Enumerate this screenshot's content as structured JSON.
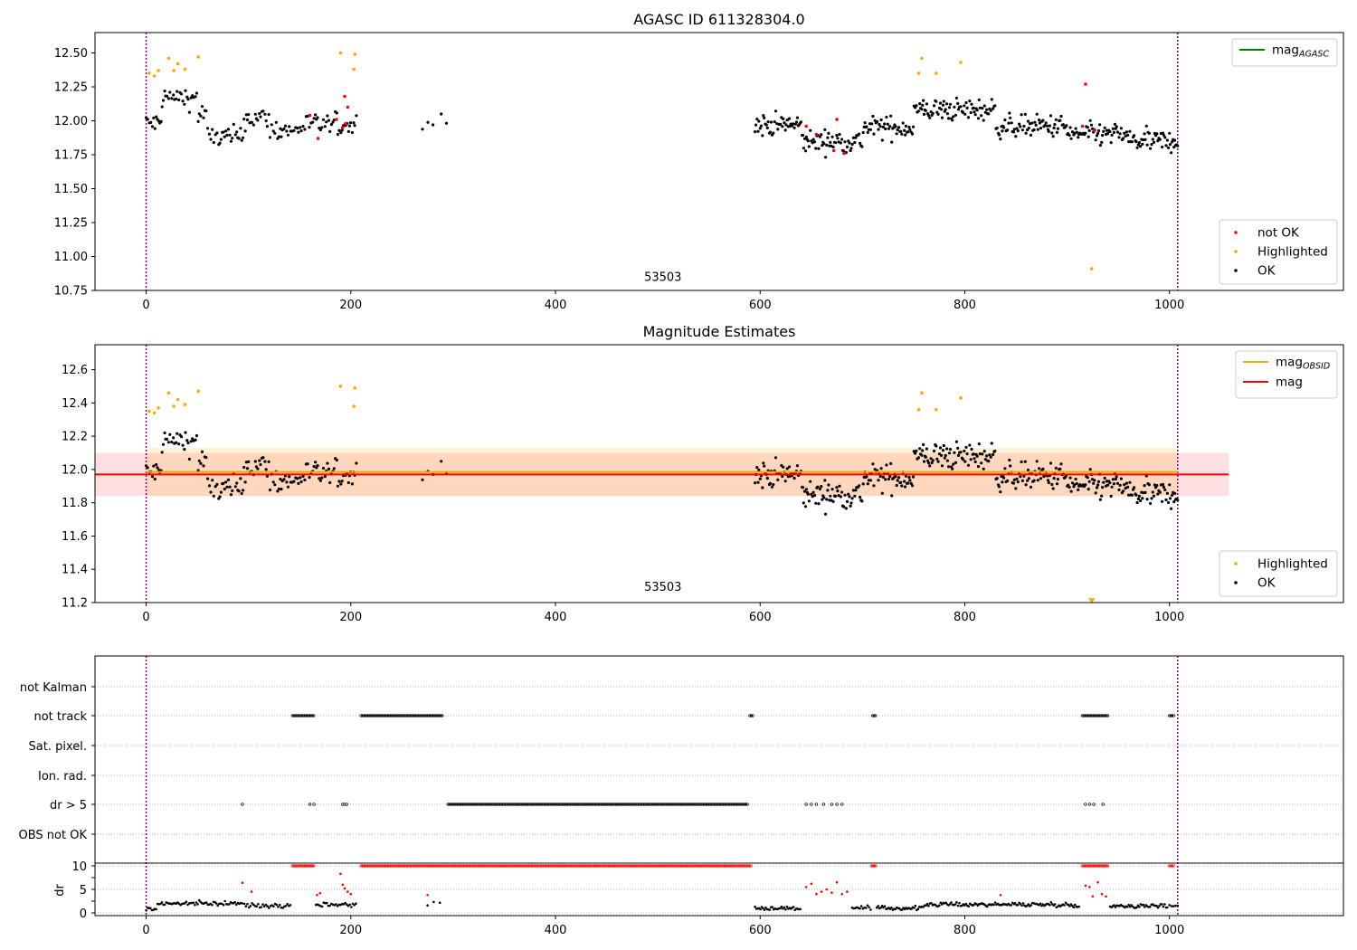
{
  "panel1": {
    "title": "AGASC ID 611328304.0",
    "type": "scatter",
    "xlim": [
      -50,
      1170
    ],
    "ylim": [
      10.75,
      12.65
    ],
    "xticks": [
      "0",
      "200",
      "400",
      "600",
      "800",
      "1000"
    ],
    "yticks": [
      "10.75",
      "11.00",
      "11.25",
      "11.50",
      "11.75",
      "12.00",
      "12.25",
      "12.50"
    ],
    "annotation": {
      "text": "53503",
      "x": 505,
      "y": 10.82
    },
    "vlines": [
      0,
      1008
    ],
    "legend_lines": [
      {
        "label_main": "mag",
        "label_sub": "AGASC",
        "color": "#008000"
      }
    ],
    "legend_points": [
      {
        "label": "not OK",
        "color": "#ff0000"
      },
      {
        "label": "Highlighted",
        "color": "#ffa500"
      },
      {
        "label": "OK",
        "color": "#000000"
      }
    ],
    "highlighted_points": [
      [
        3,
        12.35
      ],
      [
        8,
        12.33
      ],
      [
        12,
        12.37
      ],
      [
        22,
        12.46
      ],
      [
        27,
        12.37
      ],
      [
        31,
        12.42
      ],
      [
        38,
        12.38
      ],
      [
        51,
        12.47
      ],
      [
        190,
        12.5
      ],
      [
        204,
        12.49
      ],
      [
        203,
        12.38
      ],
      [
        755,
        12.35
      ],
      [
        758,
        12.46
      ],
      [
        772,
        12.35
      ],
      [
        796,
        12.43
      ],
      [
        924,
        10.91
      ]
    ],
    "notok_points": [
      [
        160,
        12.04
      ],
      [
        168,
        11.87
      ],
      [
        186,
        12.01
      ],
      [
        192,
        11.95
      ],
      [
        194,
        12.18
      ],
      [
        195,
        11.98
      ],
      [
        197,
        12.1
      ],
      [
        645,
        11.96
      ],
      [
        655,
        11.9
      ],
      [
        672,
        11.78
      ],
      [
        675,
        12.01
      ],
      [
        682,
        11.76
      ],
      [
        918,
        12.27
      ],
      [
        915,
        11.96
      ],
      [
        927,
        11.93
      ]
    ]
  },
  "panel2": {
    "title": "Magnitude Estimates",
    "type": "scatter",
    "xlim": [
      -50,
      1170
    ],
    "ylim": [
      11.2,
      12.75
    ],
    "xticks": [
      "0",
      "200",
      "400",
      "600",
      "800",
      "1000"
    ],
    "yticks": [
      "11.2",
      "11.4",
      "11.6",
      "11.8",
      "12.0",
      "12.2",
      "12.4",
      "12.6"
    ],
    "annotation": {
      "text": "53503",
      "x": 505,
      "y": 11.27
    },
    "vlines": [
      0,
      1008
    ],
    "mag_obsid": {
      "x0": 0,
      "x1": 1008,
      "y": 11.985,
      "band": [
        11.84,
        12.13
      ],
      "color": "#ffa500"
    },
    "mag": {
      "x0": -50,
      "x1": 1058,
      "y": 11.97,
      "band": [
        11.84,
        12.1
      ],
      "color": "#ff0000"
    },
    "legend_lines": [
      {
        "label_main": "mag",
        "label_sub": "OBSID",
        "color": "#ffa500"
      },
      {
        "label_main": "mag",
        "label_sub": "",
        "color": "#ff0000"
      }
    ],
    "legend_points": [
      {
        "label": "Highlighted",
        "color": "#ffa500"
      },
      {
        "label": "OK",
        "color": "#000000"
      }
    ],
    "highlighted_points": [
      [
        3,
        12.35
      ],
      [
        8,
        12.34
      ],
      [
        12,
        12.37
      ],
      [
        22,
        12.46
      ],
      [
        27,
        12.38
      ],
      [
        31,
        12.42
      ],
      [
        38,
        12.39
      ],
      [
        51,
        12.47
      ],
      [
        190,
        12.5
      ],
      [
        204,
        12.49
      ],
      [
        203,
        12.38
      ],
      [
        755,
        12.36
      ],
      [
        758,
        12.46
      ],
      [
        772,
        12.36
      ],
      [
        796,
        12.43
      ]
    ],
    "marker": {
      "x": 924,
      "y": 11.21
    }
  },
  "panel3": {
    "type": "scatter",
    "xlim": [
      -50,
      1170
    ],
    "xticks": [
      "0",
      "200",
      "400",
      "600",
      "800",
      "1000"
    ],
    "flag_labels": [
      "not Kalman",
      "not track",
      "Sat. pixel.",
      "Ion. rad.",
      "dr > 5",
      "OBS not OK"
    ],
    "not_track_ranges": [
      [
        143,
        165
      ],
      [
        210,
        290
      ],
      [
        590,
        593
      ],
      [
        710,
        713
      ],
      [
        915,
        940
      ],
      [
        1000,
        1005
      ]
    ],
    "dr5_ranges": [
      [
        295,
        588
      ]
    ],
    "dr5_points": [
      94,
      160,
      164,
      192,
      194,
      196,
      645,
      650,
      655,
      662,
      670,
      675,
      680,
      918,
      922,
      926,
      935
    ],
    "dr_ylabel": "dr",
    "dr_yticks": [
      "0",
      "5",
      "10"
    ],
    "dr_clipped_ranges": [
      [
        143,
        165
      ],
      [
        210,
        592
      ],
      [
        709,
        713
      ],
      [
        915,
        940
      ],
      [
        1000,
        1005
      ]
    ],
    "dr_red_points": [
      [
        94,
        6.4
      ],
      [
        103,
        4.5
      ],
      [
        167,
        3.8
      ],
      [
        170,
        4.2
      ],
      [
        190,
        8.3
      ],
      [
        192,
        6.0
      ],
      [
        194,
        5.2
      ],
      [
        197,
        4.5
      ],
      [
        200,
        4.0
      ],
      [
        275,
        3.8
      ],
      [
        645,
        5.5
      ],
      [
        650,
        6.2
      ],
      [
        655,
        4.0
      ],
      [
        660,
        4.5
      ],
      [
        665,
        5.0
      ],
      [
        670,
        4.3
      ],
      [
        675,
        6.5
      ],
      [
        680,
        4.0
      ],
      [
        685,
        4.5
      ],
      [
        918,
        5.8
      ],
      [
        922,
        5.5
      ],
      [
        925,
        3.5
      ],
      [
        930,
        6.5
      ],
      [
        934,
        4.0
      ],
      [
        938,
        3.5
      ],
      [
        835,
        3.8
      ]
    ]
  }
}
